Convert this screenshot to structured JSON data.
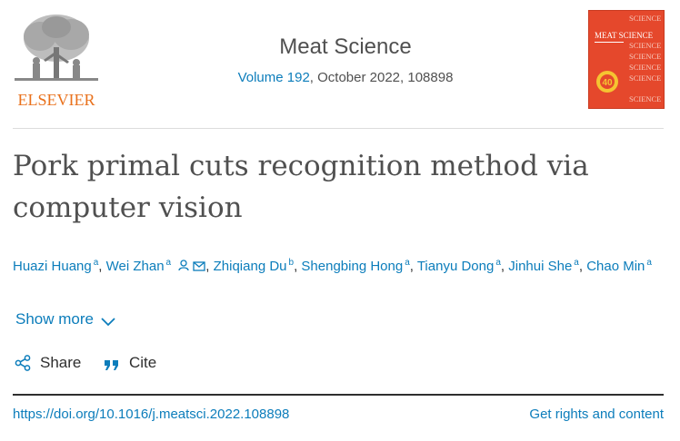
{
  "publisher": {
    "logo_text": "ELSEVIER"
  },
  "journal": {
    "title": "Meat Science",
    "volume_link": "Volume 192",
    "issue_rest": ", October 2022, 108898",
    "cover": {
      "lines": [
        "SCIENCE",
        "MEAT SCIENCE",
        "SCIENCE",
        "SCIENCE",
        "SCIENCE",
        "SCIENCE",
        "SCIENCE"
      ],
      "badge": "40",
      "colors": {
        "background": "#e5482c",
        "text": "#ffffff",
        "badge": "#f5c431"
      }
    }
  },
  "article": {
    "title": "Pork primal cuts recognition method via computer vision"
  },
  "authors": [
    {
      "name": "Huazi Huang",
      "aff": "a",
      "icons": []
    },
    {
      "name": "Wei Zhan",
      "aff": "a",
      "icons": [
        "person-icon",
        "mail-icon"
      ]
    },
    {
      "name": "Zhiqiang Du",
      "aff": "b",
      "icons": []
    },
    {
      "name": "Shengbing Hong",
      "aff": "a",
      "icons": []
    },
    {
      "name": "Tianyu Dong",
      "aff": "a",
      "icons": []
    },
    {
      "name": "Jinhui She",
      "aff": "a",
      "icons": []
    },
    {
      "name": "Chao Min",
      "aff": "a",
      "icons": []
    }
  ],
  "actions": {
    "show_more": "Show more",
    "share": "Share",
    "cite": "Cite"
  },
  "footer": {
    "doi": "https://doi.org/10.1016/j.meatsci.2022.108898",
    "rights": "Get rights and content"
  },
  "colors": {
    "link": "#0c7dbb",
    "brand": "#e9711c",
    "text": "#2e2e2e"
  }
}
